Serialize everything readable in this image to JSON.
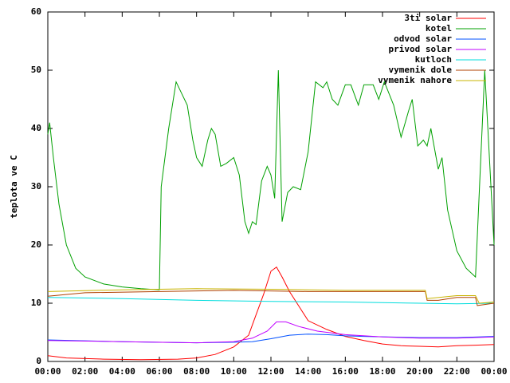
{
  "chart_data": {
    "type": "line",
    "y_label": "teplota ve C",
    "xlim": [
      0,
      24
    ],
    "xticks": [
      {
        "value": 0,
        "label": "00:00"
      },
      {
        "value": 2,
        "label": "02:00"
      },
      {
        "value": 4,
        "label": "04:00"
      },
      {
        "value": 6,
        "label": "06:00"
      },
      {
        "value": 8,
        "label": "08:00"
      },
      {
        "value": 10,
        "label": "10:00"
      },
      {
        "value": 12,
        "label": "12:00"
      },
      {
        "value": 14,
        "label": "14:00"
      },
      {
        "value": 16,
        "label": "16:00"
      },
      {
        "value": 18,
        "label": "18:00"
      },
      {
        "value": 20,
        "label": "20:00"
      },
      {
        "value": 22,
        "label": "22:00"
      },
      {
        "value": 24,
        "label": "00:00"
      }
    ],
    "ylim": [
      0,
      60
    ],
    "yticks": [
      0,
      10,
      20,
      30,
      40,
      50,
      60
    ],
    "legend": "top-right",
    "series": [
      {
        "name": "3ti solar",
        "color": "#ff0000",
        "x": [
          0,
          1,
          3,
          5,
          7,
          8,
          9,
          10,
          10.8,
          11.2,
          11.6,
          12,
          12.3,
          12.6,
          13,
          13.5,
          14,
          15,
          16,
          17,
          18,
          19,
          20,
          21,
          22,
          23,
          24
        ],
        "values": [
          1,
          0.6,
          0.4,
          0.3,
          0.4,
          0.6,
          1.2,
          2.5,
          4.5,
          8,
          11.5,
          15.5,
          16.2,
          14.5,
          12,
          9.5,
          7,
          5.5,
          4.3,
          3.6,
          3,
          2.7,
          2.6,
          2.5,
          2.7,
          2.8,
          2.9
        ]
      },
      {
        "name": "kotel",
        "color": "#00a000",
        "x": [
          0,
          0.1,
          0.3,
          0.6,
          1,
          1.5,
          2,
          3,
          4,
          5,
          6,
          6.1,
          6.5,
          6.9,
          7.2,
          7.5,
          7.8,
          8,
          8.3,
          8.6,
          8.8,
          9,
          9.3,
          9.6,
          10,
          10.3,
          10.6,
          10.8,
          11,
          11.2,
          11.5,
          11.8,
          12,
          12.2,
          12.4,
          12.6,
          12.9,
          13.2,
          13.6,
          14,
          14.4,
          14.8,
          15,
          15.3,
          15.6,
          16,
          16.3,
          16.7,
          17,
          17.5,
          17.8,
          18.1,
          18.6,
          19,
          19.4,
          19.6,
          19.9,
          20.2,
          20.4,
          20.6,
          21,
          21.2,
          21.5,
          22,
          22.5,
          23,
          23.3,
          23.5,
          23.7,
          24
        ],
        "values": [
          39,
          41,
          35,
          27,
          20,
          16,
          14.5,
          13.3,
          12.8,
          12.5,
          12.3,
          30,
          40,
          48,
          46,
          44,
          38,
          35,
          33.5,
          38,
          40,
          39,
          33.5,
          34,
          35,
          32,
          24,
          22,
          24,
          23.5,
          31,
          33.5,
          32,
          28,
          50,
          24,
          29,
          30,
          29.5,
          36,
          48,
          47,
          48,
          45,
          44,
          47.5,
          47.5,
          44,
          47.5,
          47.5,
          45,
          48,
          44,
          38.5,
          43,
          45,
          37,
          38,
          37,
          40,
          33,
          35,
          26,
          19,
          16,
          14.5,
          36,
          50,
          38,
          20
        ]
      },
      {
        "name": "odvod solar",
        "color": "#0050ff",
        "x": [
          0,
          4,
          8,
          10,
          11,
          12,
          13,
          14,
          15,
          16,
          17,
          20,
          22,
          24
        ],
        "values": [
          3.7,
          3.4,
          3.2,
          3.3,
          3.4,
          3.9,
          4.5,
          4.7,
          4.6,
          4.4,
          4.3,
          4.1,
          4.1,
          4.3
        ]
      },
      {
        "name": "privod solar",
        "color": "#c000ff",
        "x": [
          0,
          4,
          8,
          10,
          11,
          11.8,
          12.3,
          12.8,
          13.5,
          14.5,
          16,
          18,
          20,
          22,
          24
        ],
        "values": [
          3.6,
          3.4,
          3.2,
          3.4,
          4,
          5.2,
          6.8,
          6.8,
          6,
          5.2,
          4.6,
          4.2,
          4,
          4,
          4.2
        ]
      },
      {
        "name": "kutloch",
        "color": "#00dddd",
        "x": [
          0,
          4,
          8,
          12,
          16,
          20,
          22,
          24
        ],
        "values": [
          11,
          10.8,
          10.5,
          10.3,
          10.2,
          10,
          9.9,
          10
        ]
      },
      {
        "name": "vymenik dole",
        "color": "#b04000",
        "x": [
          0,
          2,
          6,
          10,
          14,
          20.3,
          20.4,
          21,
          22,
          23,
          23.1,
          24
        ],
        "values": [
          11.2,
          11.8,
          12,
          12.2,
          12,
          12,
          10.5,
          10.5,
          11,
          11,
          9.6,
          10
        ]
      },
      {
        "name": "vymenik nahore",
        "color": "#c8b400",
        "x": [
          0,
          4,
          8,
          12,
          16,
          20.3,
          20.4,
          22,
          23,
          23.2,
          24
        ],
        "values": [
          12,
          12.3,
          12.5,
          12.4,
          12.2,
          12.2,
          10.8,
          11.3,
          11.3,
          10,
          10.2
        ]
      }
    ]
  }
}
